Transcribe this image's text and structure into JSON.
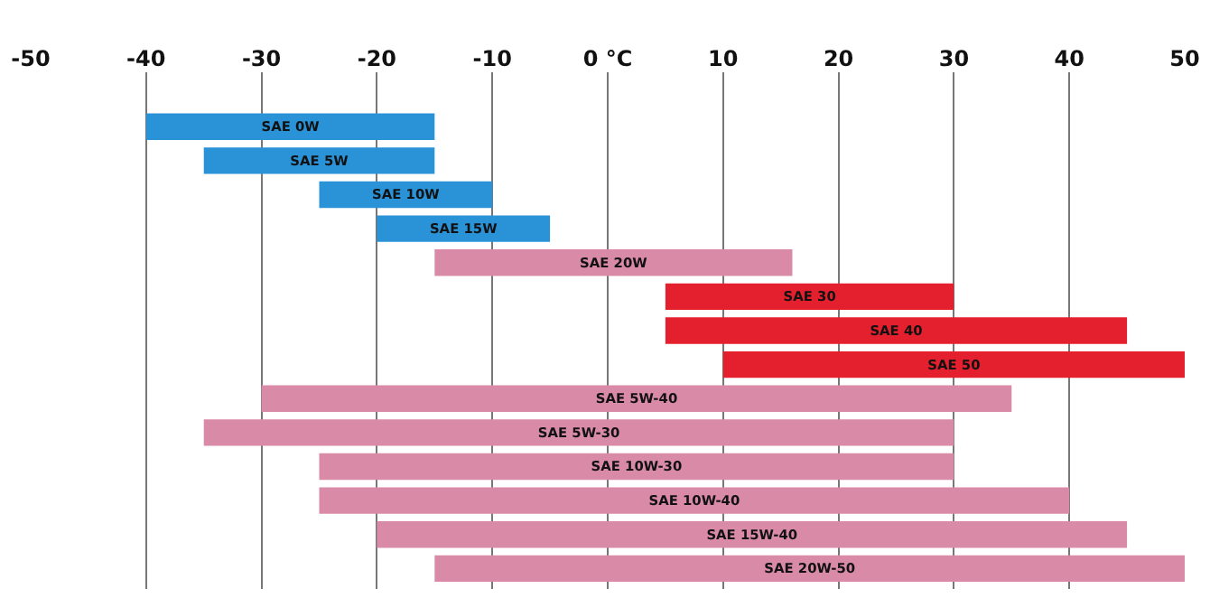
{
  "chart_data": {
    "type": "bar",
    "orientation": "horizontal",
    "categories": [
      "SAE 0W",
      "SAE 5W",
      "SAE 10W",
      "SAE 15W",
      "SAE 20W",
      "SAE 30",
      "SAE 40",
      "SAE 50",
      "SAE 5W-40",
      "SAE 5W-30",
      "SAE 10W-30",
      "SAE 10W-40",
      "SAE 15W-40",
      "SAE 20W-50"
    ],
    "base": [
      -40,
      -35,
      -25,
      -20,
      -15,
      5,
      5,
      10,
      -30,
      -35,
      -25,
      -25,
      -20,
      -15
    ],
    "values": [
      25,
      20,
      15,
      15,
      31,
      25,
      40,
      40,
      65,
      65,
      55,
      65,
      65,
      65
    ],
    "colors": [
      "#2a93d8",
      "#2a93d8",
      "#2a93d8",
      "#2a93d8",
      "#d98aa6",
      "#e4202e",
      "#e4202e",
      "#e4202e",
      "#d98aa6",
      "#d98aa6",
      "#d98aa6",
      "#d98aa6",
      "#d98aa6",
      "#d98aa6"
    ],
    "xlim": [
      -50,
      50
    ],
    "xticks": [
      -50,
      -40,
      -30,
      -20,
      -10,
      {
        "value": 0,
        "label": "0 °C"
      },
      10,
      20,
      30,
      40,
      50
    ],
    "grid": "x",
    "tick_labels": "x",
    "legend": false
  }
}
